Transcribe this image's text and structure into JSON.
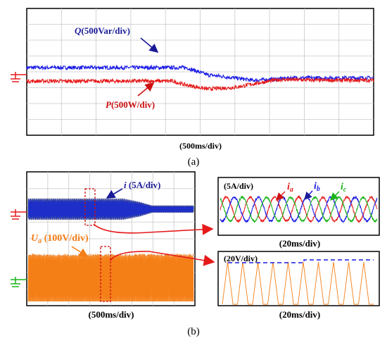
{
  "figure": {
    "panel_a_label": "(a)",
    "panel_b_label": "(b)"
  },
  "colors": {
    "blue": "#1a1ae6",
    "red": "#e61a1a",
    "green": "#1ab31a",
    "orange": "#f57f17",
    "dark_red": "#cc1111",
    "dark_blue": "#1a1a99",
    "grid": "#c8c8c8"
  },
  "chart_data": [
    {
      "id": "a",
      "type": "line",
      "time_scale": "(500ms/div)",
      "grid": true,
      "x_divisions": 10,
      "y_divisions": 8,
      "series": [
        {
          "symbol": "Q",
          "scale": "(500Var/div)",
          "color": "#1a1ae6",
          "knots": [
            [
              0,
              2.8
            ],
            [
              4.6,
              2.8
            ],
            [
              5.2,
              2.35
            ],
            [
              6,
              2.15
            ],
            [
              6.5,
              2.0
            ],
            [
              7,
              2.05
            ],
            [
              7.6,
              2.15
            ],
            [
              8.4,
              2.15
            ],
            [
              10,
              2.15
            ]
          ],
          "noise": 0.12
        },
        {
          "symbol": "P",
          "scale": "(500W/div)",
          "color": "#e61a1a",
          "knots": [
            [
              0,
              1.95
            ],
            [
              4.2,
              1.95
            ],
            [
              4.5,
              1.75
            ],
            [
              5.2,
              1.45
            ],
            [
              6,
              1.55
            ],
            [
              6.6,
              1.8
            ],
            [
              7.3,
              2.05
            ],
            [
              8.5,
              2.0
            ],
            [
              10,
              2.0
            ]
          ],
          "noise": 0.12
        }
      ]
    },
    {
      "id": "b-current",
      "type": "line",
      "time_scale": "(500ms/div)",
      "symbol": "i",
      "scale": "(5A/div)",
      "grid": true,
      "x_divisions": 8,
      "envelope_knots": [
        [
          0,
          0.9
        ],
        [
          4.6,
          0.9
        ],
        [
          5.4,
          0.62
        ],
        [
          6,
          0.3
        ],
        [
          8,
          0.3
        ]
      ],
      "colors": [
        "#e61a1a",
        "#1ab31a",
        "#1a1ae6"
      ]
    },
    {
      "id": "b-voltage",
      "type": "line",
      "time_scale": "(500ms/div)",
      "symbol": "U",
      "subscript": "a",
      "scale": "(100V/div)",
      "color": "#f57f17",
      "grid": true,
      "x_divisions": 8
    },
    {
      "id": "b-current-zoom",
      "type": "line",
      "time_scale": "(20ms/div)",
      "scale": "(5A/div)",
      "symbol": "i",
      "series": [
        {
          "subscript": "a",
          "color": "#e61a1a"
        },
        {
          "subscript": "b",
          "color": "#1a1ae6"
        },
        {
          "subscript": "c",
          "color": "#1ab31a"
        }
      ],
      "cycles": 6.5
    },
    {
      "id": "b-voltage-zoom",
      "type": "line",
      "time_scale": "(20ms/div)",
      "scale": "(20V/div)",
      "color": "#f57f17",
      "pulses": 10,
      "reference_color": "#1a1ae6"
    }
  ]
}
